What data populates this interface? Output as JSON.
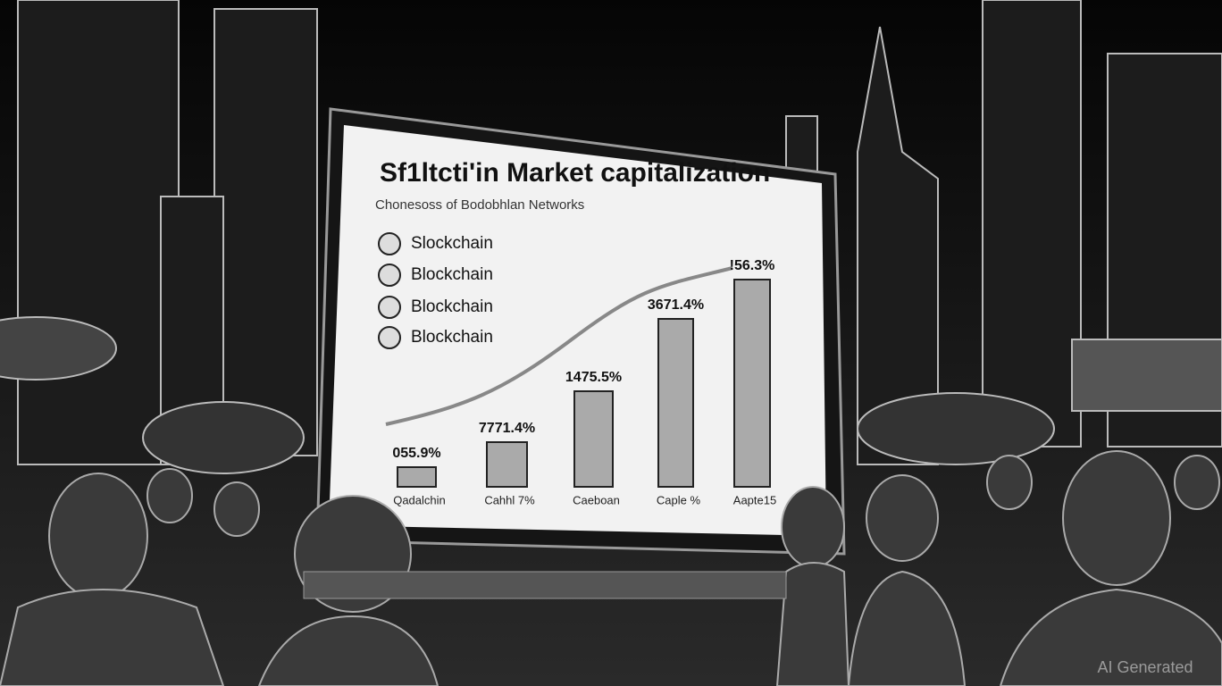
{
  "screen": {
    "title": "Sf1ltcti'in Market capitalization",
    "subtitle": "Chonesoss of Bodobhlan Networks",
    "legend": [
      "Slockchain",
      "Blockchain",
      "Blockchain",
      "Blockchain"
    ],
    "bars": [
      {
        "label": "055.9%",
        "category": "Qadalchin"
      },
      {
        "label": "7771.4%",
        "category": "Cahhl 7%"
      },
      {
        "label": "1475.5%",
        "category": "Caeboan"
      },
      {
        "label": "3671.4%",
        "category": "Caple %"
      },
      {
        "label": "!56.3%",
        "category": "Aapte15"
      }
    ]
  },
  "watermark": "AI Generated"
}
